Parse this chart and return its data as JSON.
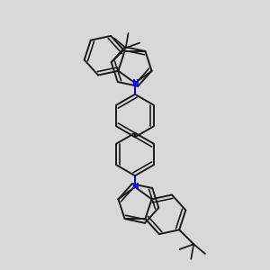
{
  "bg": "#d8d8d8",
  "bc": "#1a1a1a",
  "nc": "#0000dd",
  "lw": 1.4,
  "dpi": 100,
  "figsize": [
    3.0,
    3.0
  ]
}
